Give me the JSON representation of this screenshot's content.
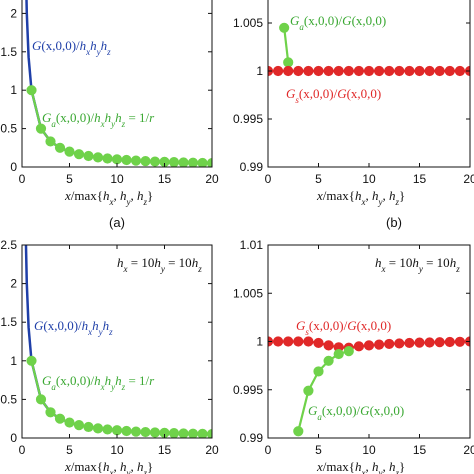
{
  "colors": {
    "blue": "#1f3fa8",
    "green": "#6fd24a",
    "green_text": "#3aa832",
    "red": "#e02828",
    "axis": "#111111"
  },
  "chart_data": [
    {
      "type": "line",
      "panel_label": "(a)",
      "xlabel": "x/max{hₓ,h_y,h_z}",
      "xlim": [
        0,
        20
      ],
      "ylim": [
        0,
        2.5
      ],
      "xticks": [
        "0",
        "5",
        "10",
        "15",
        "20"
      ],
      "yticks": [
        "0",
        "0.5",
        "1",
        "1.5",
        "2"
      ],
      "series": [
        {
          "name": "G(x,0,0)/hₓh_yh_z",
          "color": "#1f3fa8",
          "marker": false,
          "x": [
            0.35,
            0.5,
            0.7,
            1,
            2,
            3,
            4,
            5,
            6,
            7,
            8,
            9,
            10,
            11,
            12,
            13,
            14,
            15,
            16,
            17,
            18,
            19,
            20
          ],
          "y": [
            2.9,
            2.0,
            1.43,
            1.0,
            0.5,
            0.333,
            0.25,
            0.2,
            0.167,
            0.143,
            0.125,
            0.111,
            0.1,
            0.091,
            0.083,
            0.077,
            0.071,
            0.067,
            0.063,
            0.059,
            0.056,
            0.053,
            0.05
          ]
        },
        {
          "name": "Gₐ(x,0,0)/hₓh_yh_z = 1/r",
          "color": "#6fd24a",
          "marker": true,
          "x": [
            1,
            2,
            3,
            4,
            5,
            6,
            7,
            8,
            9,
            10,
            11,
            12,
            13,
            14,
            15,
            16,
            17,
            18,
            19,
            20
          ],
          "y": [
            1.0,
            0.5,
            0.333,
            0.25,
            0.2,
            0.167,
            0.143,
            0.125,
            0.111,
            0.1,
            0.091,
            0.083,
            0.077,
            0.071,
            0.067,
            0.063,
            0.059,
            0.056,
            0.053,
            0.05
          ]
        }
      ]
    },
    {
      "type": "line",
      "panel_label": "(b)",
      "xlabel": "x/max{hₓ,h_y,h_z}",
      "xlim": [
        0,
        20
      ],
      "ylim": [
        0.99,
        1.01
      ],
      "xticks": [
        "0",
        "5",
        "10",
        "15",
        "20"
      ],
      "yticks": [
        "0.99",
        "0.995",
        "1",
        "1.005"
      ],
      "series": [
        {
          "name": "Gₐ(x,0,0)/G(x,0,0)",
          "color": "#6fd24a",
          "marker": true,
          "x": [
            1.6,
            2
          ],
          "y": [
            1.0045,
            1.0009
          ]
        },
        {
          "name": "G_s(x,0,0)/G(x,0,0)",
          "color": "#e02828",
          "marker": true,
          "x": [
            0,
            1,
            2,
            3,
            4,
            5,
            6,
            7,
            8,
            9,
            10,
            11,
            12,
            13,
            14,
            15,
            16,
            17,
            18,
            19,
            20
          ],
          "y": [
            1,
            1,
            1,
            1,
            1,
            1,
            1,
            1,
            1,
            1,
            1,
            1,
            1,
            1,
            1,
            1,
            1,
            1,
            1,
            1,
            1
          ]
        }
      ]
    },
    {
      "type": "line",
      "panel_label": "",
      "annotation": "hₓ = 10h_y = 10h_z",
      "xlabel": "x/max{hₓ,h_y,h_z}",
      "xlim": [
        0,
        20
      ],
      "ylim": [
        0,
        2.5
      ],
      "xticks": [
        "0",
        "5",
        "10",
        "15",
        "20"
      ],
      "yticks": [
        "0",
        "0.5",
        "1",
        "1.5",
        "2",
        "2.5"
      ],
      "series": [
        {
          "name": "G(x,0,0)/hₓh_yh_z",
          "color": "#1f3fa8",
          "marker": false,
          "x": [
            0.35,
            0.5,
            0.7,
            1,
            2,
            3,
            4,
            5,
            6,
            7,
            8,
            9,
            10,
            11,
            12,
            13,
            14,
            15,
            16,
            17,
            18,
            19,
            20
          ],
          "y": [
            2.9,
            2.0,
            1.43,
            1.0,
            0.5,
            0.333,
            0.25,
            0.2,
            0.167,
            0.143,
            0.125,
            0.111,
            0.1,
            0.091,
            0.083,
            0.077,
            0.071,
            0.067,
            0.063,
            0.059,
            0.056,
            0.053,
            0.05
          ]
        },
        {
          "name": "Gₐ(x,0,0)/hₓh_yh_z = 1/r",
          "color": "#6fd24a",
          "marker": true,
          "x": [
            1,
            2,
            3,
            4,
            5,
            6,
            7,
            8,
            9,
            10,
            11,
            12,
            13,
            14,
            15,
            16,
            17,
            18,
            19,
            20
          ],
          "y": [
            1.0,
            0.5,
            0.333,
            0.25,
            0.2,
            0.167,
            0.143,
            0.125,
            0.111,
            0.1,
            0.091,
            0.083,
            0.077,
            0.071,
            0.067,
            0.063,
            0.059,
            0.056,
            0.053,
            0.05
          ]
        }
      ]
    },
    {
      "type": "line",
      "panel_label": "",
      "annotation": "hₓ = 10h_y = 10h_z",
      "xlabel": "x/max{hₓ,h_y,h_z}",
      "xlim": [
        0,
        20
      ],
      "ylim": [
        0.99,
        1.01
      ],
      "xticks": [
        "0",
        "5",
        "10",
        "15",
        "20"
      ],
      "yticks": [
        "0.99",
        "0.995",
        "1",
        "1.005",
        "1.01"
      ],
      "series": [
        {
          "name": "G_s(x,0,0)/G(x,0,0)",
          "color": "#e02828",
          "marker": true,
          "x": [
            0,
            1,
            2,
            3,
            4,
            5,
            6,
            7,
            8,
            9,
            10,
            11,
            12,
            13,
            14,
            15,
            16,
            17,
            18,
            19,
            20
          ],
          "y": [
            1,
            1,
            1,
            1,
            1,
            0.99985,
            0.9996,
            0.9994,
            0.99935,
            0.9995,
            0.9996,
            0.99968,
            0.99975,
            0.9998,
            0.99985,
            0.99988,
            0.9999,
            0.99993,
            0.99995,
            0.99997,
            1
          ]
        },
        {
          "name": "Gₐ(x,0,0)/G(x,0,0)",
          "color": "#6fd24a",
          "marker": true,
          "x": [
            3,
            4,
            5,
            6,
            7,
            8
          ],
          "y": [
            0.9907,
            0.9949,
            0.9969,
            0.998,
            0.9987,
            0.999
          ]
        }
      ]
    }
  ]
}
